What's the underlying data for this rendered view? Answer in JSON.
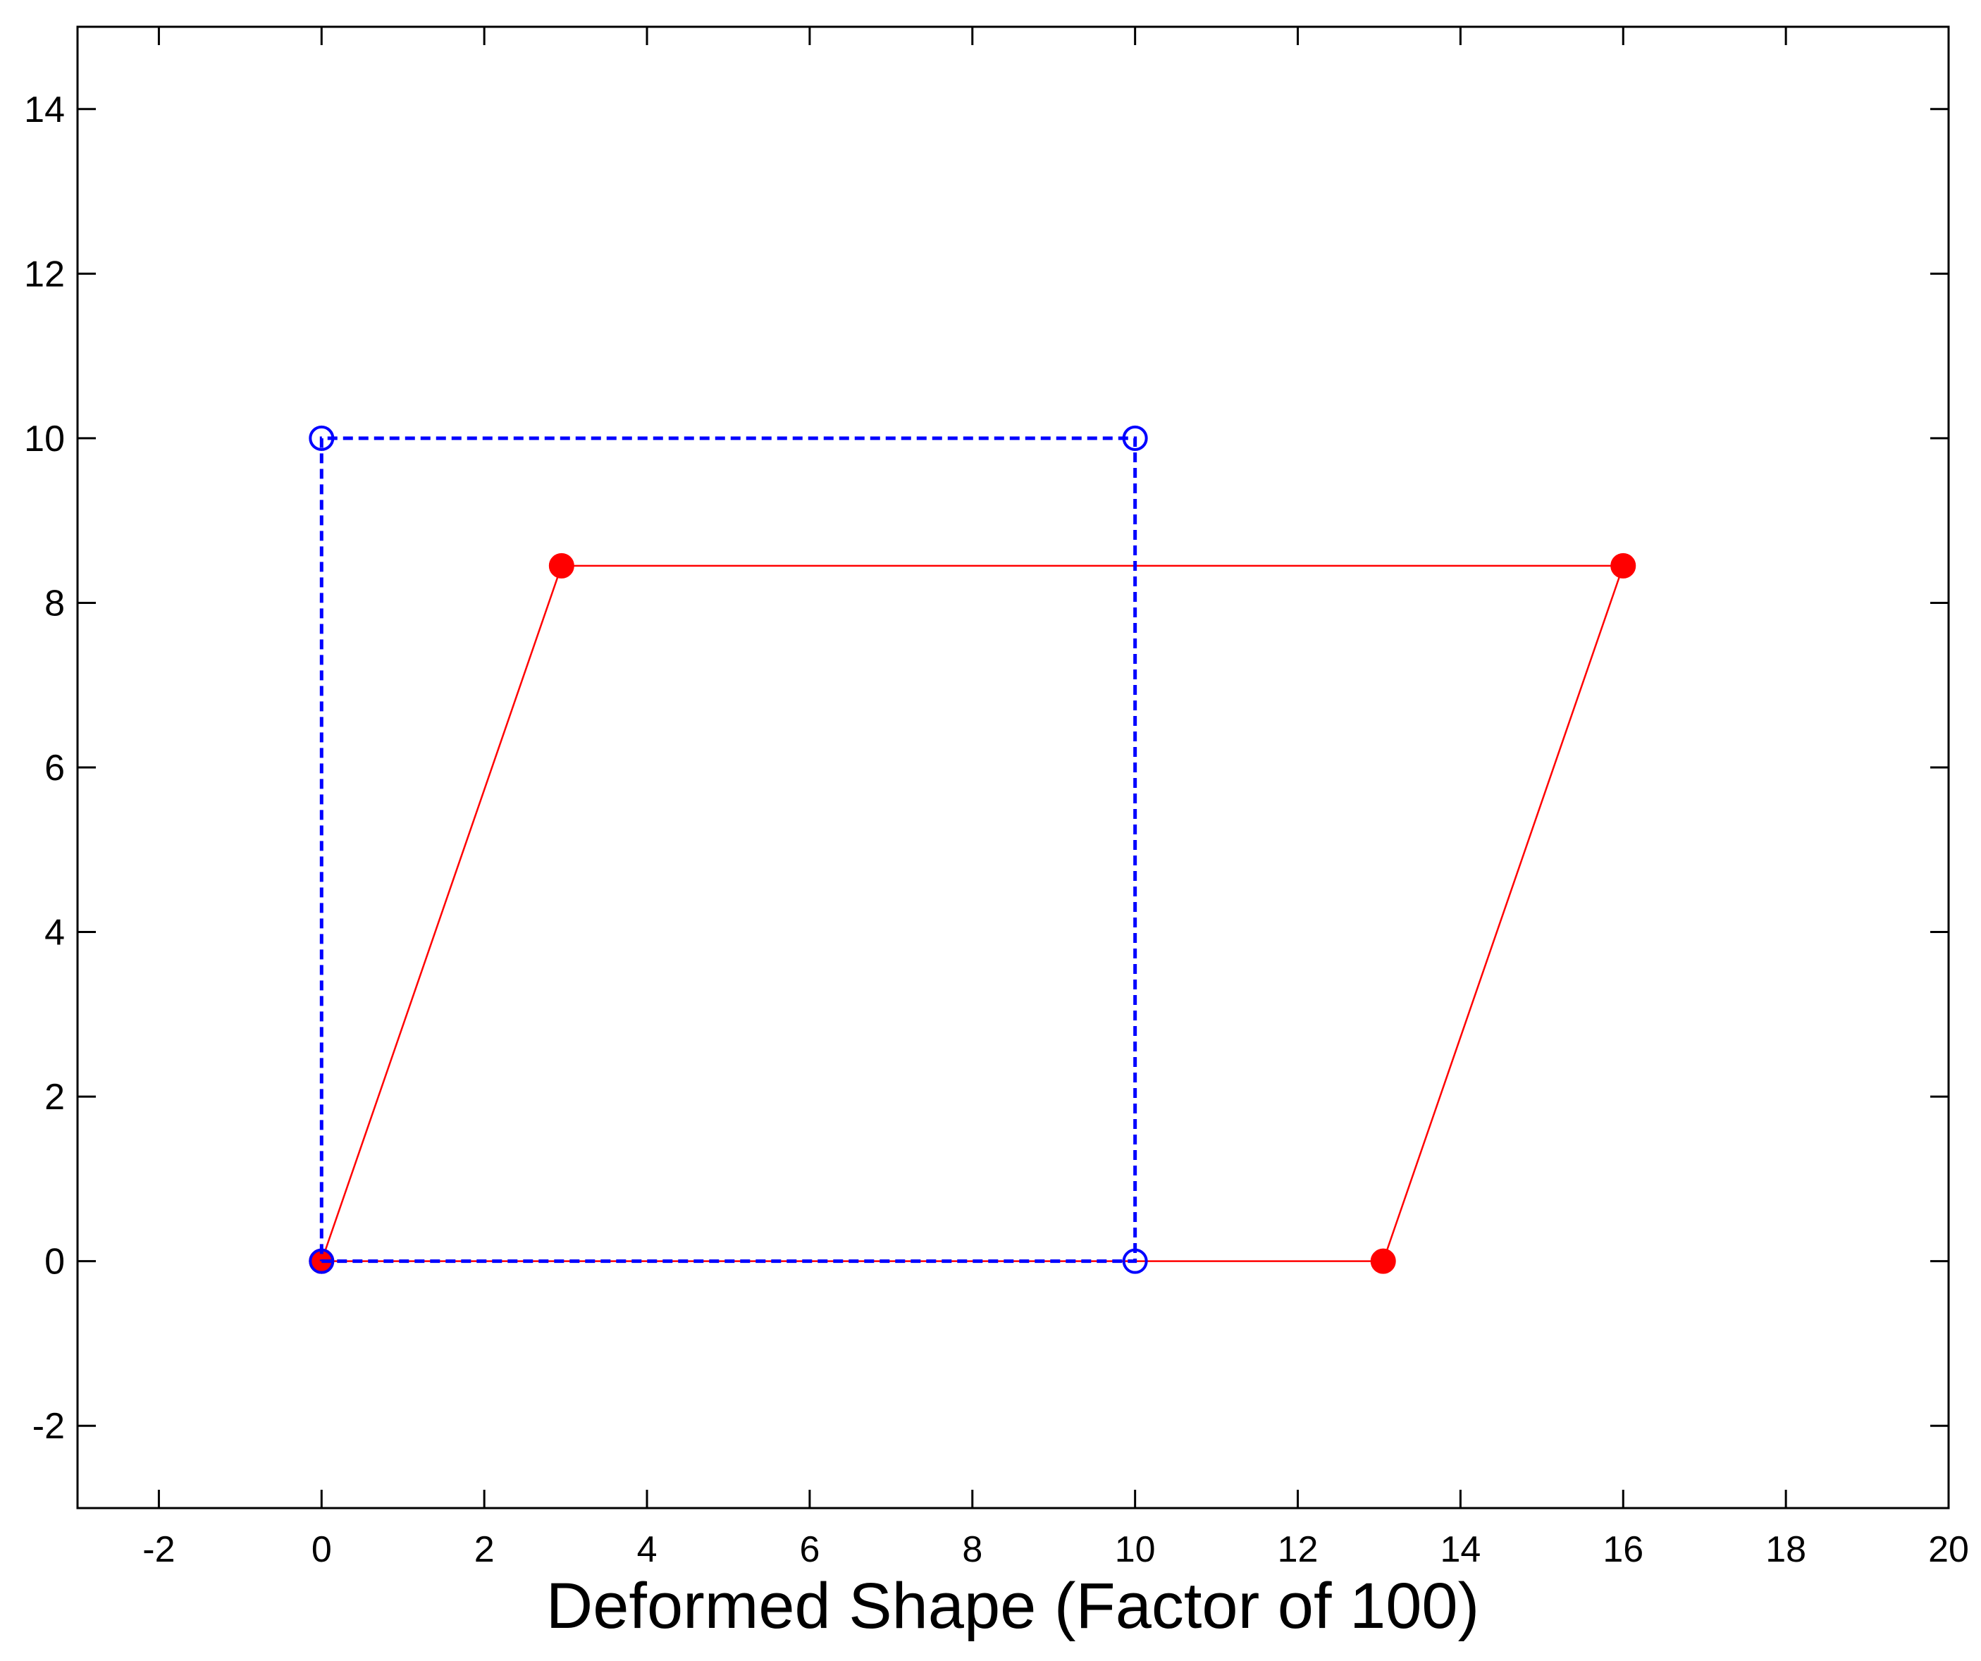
{
  "chart_data": {
    "type": "line",
    "title": "",
    "xlabel": "Deformed Shape (Factor of 100)",
    "ylabel": "",
    "xlim": [
      -3,
      20
    ],
    "ylim": [
      -3,
      15
    ],
    "xticks": [
      -2,
      0,
      2,
      4,
      6,
      8,
      10,
      12,
      14,
      16,
      18,
      20
    ],
    "yticks": [
      -2,
      0,
      2,
      4,
      6,
      8,
      10,
      12,
      14
    ],
    "grid": false,
    "legend": "none",
    "series": [
      {
        "style": "dashed-line-open-circle-markers",
        "color": "#0000ff",
        "points": [
          [
            0,
            0
          ],
          [
            10,
            0
          ],
          [
            10,
            10
          ],
          [
            0,
            10
          ],
          [
            0,
            0
          ]
        ]
      },
      {
        "style": "solid-line-filled-circle-markers",
        "color": "#ff0000",
        "points": [
          [
            0,
            0
          ],
          [
            13.05,
            0
          ],
          [
            16.0,
            8.45
          ],
          [
            2.95,
            8.45
          ],
          [
            0,
            0
          ]
        ]
      }
    ]
  }
}
